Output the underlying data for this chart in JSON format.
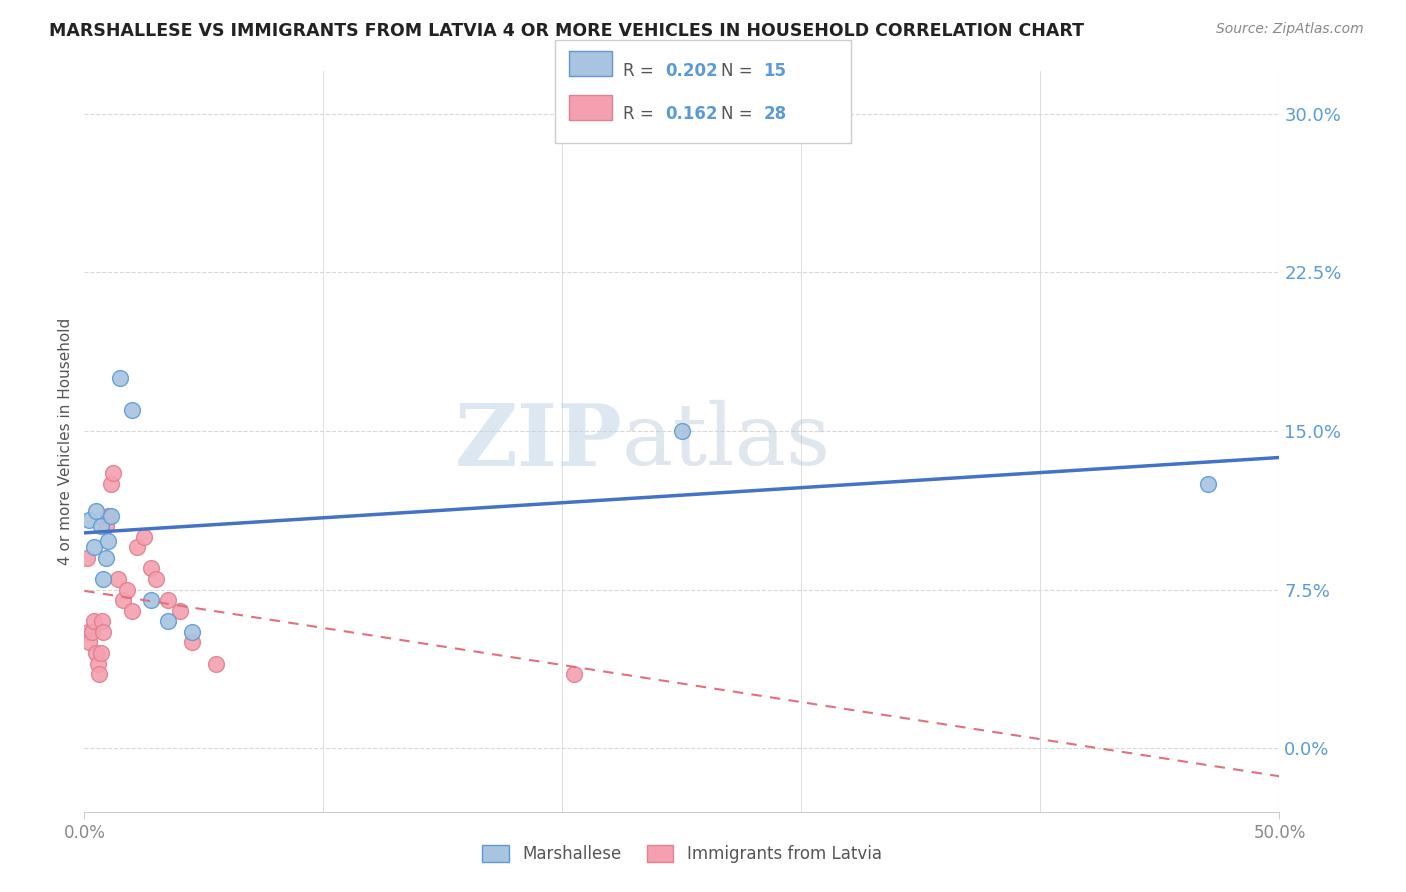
{
  "title": "MARSHALLESE VS IMMIGRANTS FROM LATVIA 4 OR MORE VEHICLES IN HOUSEHOLD CORRELATION CHART",
  "source": "Source: ZipAtlas.com",
  "ylabel": "4 or more Vehicles in Household",
  "ytick_values": [
    0.0,
    7.5,
    15.0,
    22.5,
    30.0
  ],
  "xmin": 0.0,
  "xmax": 50.0,
  "ymin": -3.0,
  "ymax": 32.0,
  "marshallese_x": [
    0.2,
    0.4,
    0.5,
    0.7,
    0.8,
    0.9,
    1.0,
    1.1,
    1.5,
    2.0,
    2.8,
    3.5,
    4.5,
    25.0,
    47.0
  ],
  "marshallese_y": [
    10.8,
    9.5,
    11.2,
    10.5,
    8.0,
    9.0,
    9.8,
    11.0,
    17.5,
    16.0,
    7.0,
    6.0,
    5.5,
    15.0,
    12.5
  ],
  "latvia_x": [
    0.1,
    0.15,
    0.2,
    0.3,
    0.4,
    0.5,
    0.55,
    0.6,
    0.7,
    0.75,
    0.8,
    0.9,
    1.0,
    1.1,
    1.2,
    1.4,
    1.6,
    1.8,
    2.0,
    2.2,
    2.5,
    2.8,
    3.0,
    3.5,
    4.0,
    4.5,
    5.5,
    20.5
  ],
  "latvia_y": [
    9.0,
    5.5,
    5.0,
    5.5,
    6.0,
    4.5,
    4.0,
    3.5,
    4.5,
    6.0,
    5.5,
    10.5,
    11.0,
    12.5,
    13.0,
    8.0,
    7.0,
    7.5,
    6.5,
    9.5,
    10.0,
    8.5,
    8.0,
    7.0,
    6.5,
    5.0,
    4.0,
    3.5
  ],
  "blue_dot_color": "#a8c4e0",
  "blue_edge_color": "#5b9bd5",
  "pink_dot_color": "#f4a0b0",
  "pink_edge_color": "#e08090",
  "trend_blue_color": "#4472c4",
  "trend_pink_color": "#e07080",
  "watermark_zip": "ZIP",
  "watermark_atlas": "atlas",
  "dot_size": 130,
  "legend_r1_val": "0.202",
  "legend_n1_val": "15",
  "legend_r2_val": "0.162",
  "legend_n2_val": "28",
  "legend_color_blue": "#a8c4e0",
  "legend_color_pink": "#f4a0b0",
  "legend_text_color": "#555555",
  "legend_val_color": "#5b9bd5",
  "ytick_color": "#5b9bd5",
  "xtick_color": "#888888",
  "grid_color": "#d8d8d8",
  "spine_color": "#cccccc"
}
